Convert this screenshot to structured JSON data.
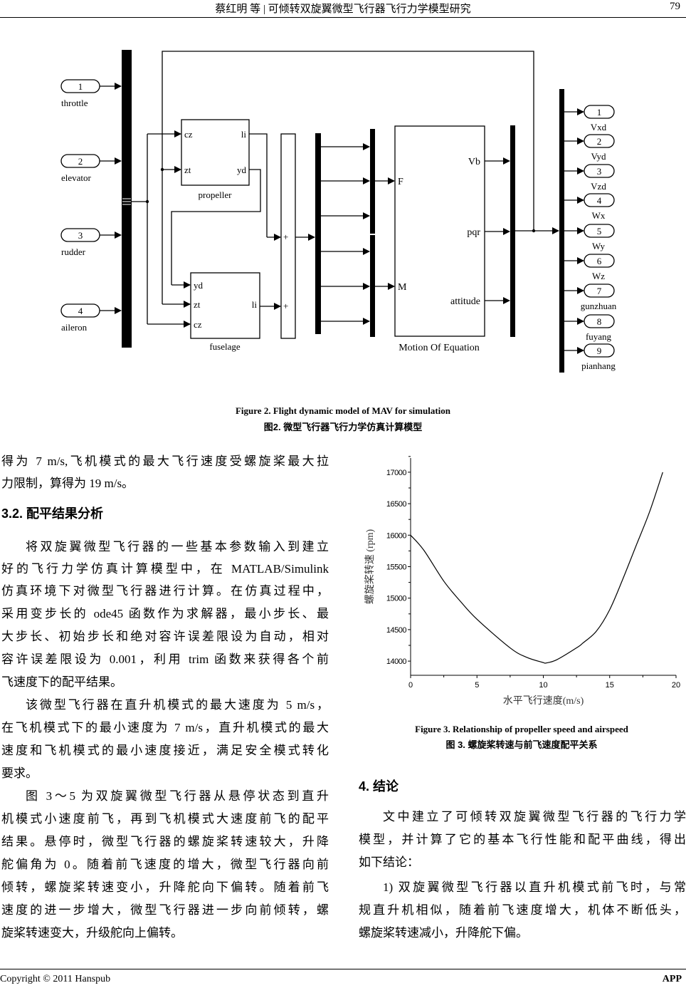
{
  "header": {
    "title": "蔡红明  等 | 可倾转双旋翼微型飞行器飞行力学模型研究",
    "page": "79"
  },
  "figure2": {
    "inports": [
      {
        "num": "1",
        "label": "throttle"
      },
      {
        "num": "2",
        "label": "elevator"
      },
      {
        "num": "3",
        "label": "rudder"
      },
      {
        "num": "4",
        "label": "aileron"
      }
    ],
    "propeller": {
      "name": "propeller",
      "in": [
        "cz",
        "zt"
      ],
      "out": [
        "li",
        "yd"
      ]
    },
    "fuselage": {
      "name": "fuselage",
      "in": [
        "yd",
        "zt",
        "cz"
      ],
      "out": [
        "li"
      ]
    },
    "sum_signs": [
      "+",
      "+"
    ],
    "motion": {
      "name": "Motion Of Equation",
      "in": [
        "F",
        "M"
      ],
      "out": [
        "Vb",
        "pqr",
        "attitude"
      ]
    },
    "outports": [
      {
        "num": "1",
        "label": "Vxd"
      },
      {
        "num": "2",
        "label": "Vyd"
      },
      {
        "num": "3",
        "label": "Vzd"
      },
      {
        "num": "4",
        "label": "Wx"
      },
      {
        "num": "5",
        "label": "Wy"
      },
      {
        "num": "6",
        "label": "Wz"
      },
      {
        "num": "7",
        "label": "gunzhuan"
      },
      {
        "num": "8",
        "label": "fuyang"
      },
      {
        "num": "9",
        "label": "pianhang"
      }
    ],
    "caption_en": "Figure 2. Flight dynamic model of MAV for simulation",
    "caption_cn": "图2.  微型飞行器飞行力学仿真计算模型"
  },
  "left_column": [
    {
      "text": "得为 7  m/s,飞机模式的最大飞行速度受螺旋桨最大拉"
    },
    {
      "text": "力限制，算得为 19 m/s。",
      "last": true
    },
    {
      "text": "3.2.  配平结果分析",
      "heading": true
    },
    {
      "text": "将双旋翼微型飞行器的一些基本参数输入到建立",
      "indent": true
    },
    {
      "text": "好的飞行力学仿真计算模型中，在 MATLAB/Simulink"
    },
    {
      "text": "仿真环境下对微型飞行器进行计算。在仿真过程中，"
    },
    {
      "text": "采用变步长的 ode45 函数作为求解器，最小步长、最"
    },
    {
      "text": "大步长、初始步长和绝对容许误差限设为自动，相对"
    },
    {
      "text": "容许误差限设为 0.001，利用 trim 函数来获得各个前"
    },
    {
      "text": "飞速度下的配平结果。",
      "last": true
    },
    {
      "text": "该微型飞行器在直升机模式的最大速度为 5 m/s，",
      "indent": true
    },
    {
      "text": "在飞机模式下的最小速度为 7 m/s，直升机模式的最大"
    },
    {
      "text": "速度和飞机模式的最小速度接近，满足安全模式转化"
    },
    {
      "text": "要求。",
      "last": true
    },
    {
      "text": "图 3～5 为双旋翼微型飞行器从悬停状态到直升",
      "indent": true
    },
    {
      "text": "机模式小速度前飞，再到飞机模式大速度前飞的配平"
    },
    {
      "text": "结果。悬停时，微型飞行器的螺旋桨转速较大，升降"
    },
    {
      "text": "舵偏角为 0。随着前飞速度的增大，微型飞行器向前"
    },
    {
      "text": "倾转，螺旋桨转速变小，升降舵向下偏转。随着前飞"
    },
    {
      "text": "速度的进一步增大，微型飞行器进一步向前倾转，螺"
    },
    {
      "text": "旋桨转速变大，升级舵向上偏转。",
      "last": true
    }
  ],
  "figure3": {
    "caption_en": "Figure 3. Relationship of propeller speed and airspeed",
    "caption_cn": "图 3.  螺旋桨转速与前飞速度配平关系"
  },
  "chart_data": {
    "type": "line",
    "title": "",
    "xlabel": "水平飞行速度(m/s)",
    "ylabel": "螺旋桨转速 (rpm)",
    "xlim": [
      0,
      20
    ],
    "ylim": [
      13775,
      17225
    ],
    "xticks": [
      0,
      5,
      10,
      15,
      20
    ],
    "yticks": [
      14000,
      14500,
      15000,
      15500,
      16000,
      16500,
      17000
    ],
    "grid": false,
    "x": [
      0,
      1,
      2.5,
      3.75,
      5,
      7.5,
      8.75,
      10,
      10.2,
      11,
      12.5,
      13,
      14,
      15,
      16,
      17,
      18,
      19
    ],
    "y": [
      16000,
      15760,
      15270,
      14950,
      14665,
      14210,
      14060,
      13977,
      13970,
      14020,
      14210,
      14290,
      14476,
      14816,
      15308,
      15838,
      16367,
      17000
    ]
  },
  "right_column": [
    {
      "text": "4.  结论",
      "heading": true
    },
    {
      "text": "文中建立了可倾转双旋翼微型飞行器的飞行力学",
      "indent": true
    },
    {
      "text": "模型，并计算了它的基本飞行性能和配平曲线，得出"
    },
    {
      "text": "如下结论：",
      "last": true
    },
    {
      "text": "1)  双旋翼微型飞行器以直升机模式前飞时，与常",
      "indent": true
    },
    {
      "text": "规直升机相似，随着前飞速度增大，机体不断低头，"
    },
    {
      "text": "螺旋桨转速减小，升降舵下偏。",
      "last": true
    }
  ],
  "footer": {
    "copyright": "Copyright © 2011 Hanspub",
    "journal": "APP"
  }
}
